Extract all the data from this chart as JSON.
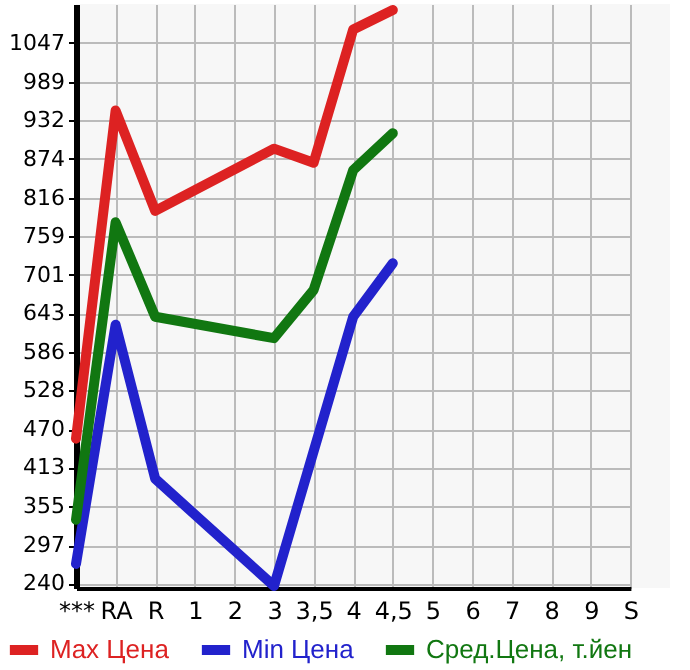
{
  "chart_data": {
    "type": "line",
    "categories": [
      "***",
      "RA",
      "R",
      "1",
      "2",
      "3",
      "3,5",
      "4",
      "4,5",
      "5",
      "6",
      "7",
      "8",
      "9",
      "S"
    ],
    "series": [
      {
        "name": "Max Цена",
        "color": "#dd2222",
        "values": [
          456,
          946,
          796,
          null,
          null,
          889,
          868,
          1067,
          1096,
          null,
          null,
          null,
          null,
          null,
          null
        ]
      },
      {
        "name": "Min Цена",
        "color": "#2222cc",
        "values": [
          269,
          626,
          396,
          null,
          null,
          236,
          null,
          638,
          718,
          null,
          null,
          null,
          null,
          null,
          null
        ]
      },
      {
        "name": "Сред.Цена, т.йен",
        "color": "#117711",
        "values": [
          335,
          779,
          638,
          null,
          null,
          606,
          678,
          857,
          912,
          null,
          null,
          null,
          null,
          null,
          null
        ]
      }
    ],
    "ylim": [
      233,
      1105
    ],
    "yticks": [
      240,
      297,
      355,
      413,
      470,
      528,
      586,
      643,
      701,
      759,
      816,
      874,
      932,
      989,
      1047
    ],
    "grid": true,
    "legend": "bottom",
    "line_style": "solid"
  }
}
